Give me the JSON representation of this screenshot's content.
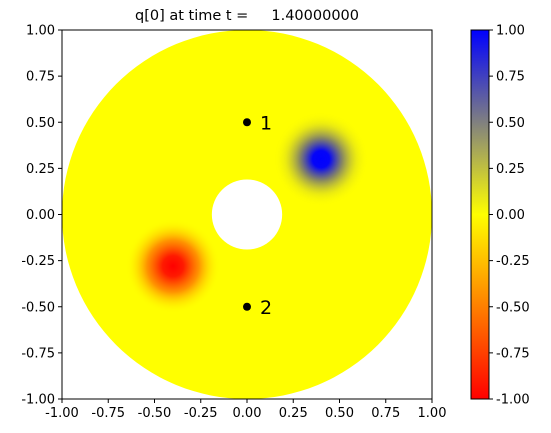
{
  "chart_data": {
    "type": "heatmap",
    "title": "q[0] at time t =     1.40000000",
    "xlim": [
      -1.0,
      1.0
    ],
    "ylim": [
      -1.0,
      1.0
    ],
    "xticks": [
      "-1.00",
      "-0.75",
      "-0.50",
      "-0.25",
      "0.00",
      "0.25",
      "0.50",
      "0.75",
      "1.00"
    ],
    "yticks": [
      "-1.00",
      "-0.75",
      "-0.50",
      "-0.25",
      "0.00",
      "0.25",
      "0.50",
      "0.75",
      "1.00"
    ],
    "domain": {
      "outer_radius": 1.0,
      "inner_radius": 0.19,
      "background_value": 0.0
    },
    "blobs": [
      {
        "x": 0.4,
        "y": 0.3,
        "value": 1.0,
        "width": 0.08
      },
      {
        "x": -0.4,
        "y": -0.28,
        "value": -1.0,
        "width": 0.08
      }
    ],
    "gauges": [
      {
        "label": "1",
        "x": 0.0,
        "y": 0.5
      },
      {
        "label": "2",
        "x": 0.0,
        "y": -0.5
      }
    ],
    "colorbar": {
      "vmin": -1.0,
      "vmax": 1.0,
      "ticks": [
        "1.00",
        "0.75",
        "0.50",
        "0.25",
        "0.00",
        "-0.25",
        "-0.50",
        "-0.75",
        "-1.00"
      ],
      "colors": {
        "low": "#ff0000",
        "mid": "#ffff00",
        "high": "#0000ff"
      }
    }
  }
}
